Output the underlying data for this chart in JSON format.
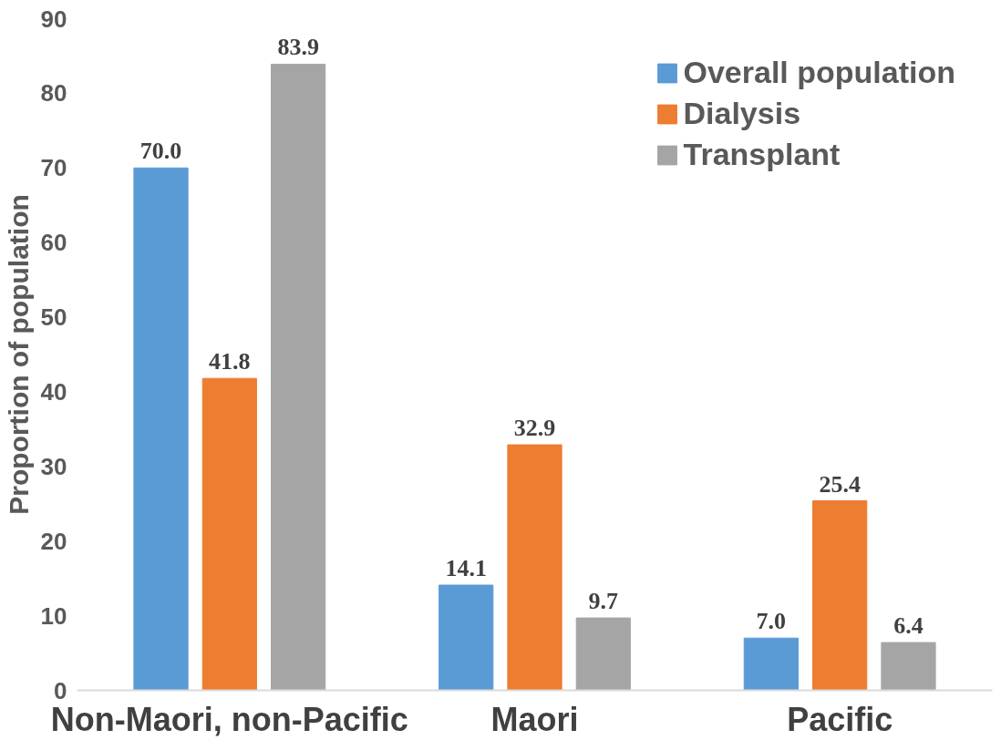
{
  "chart_data": {
    "type": "bar",
    "ylabel": "Proportion of population",
    "categories": [
      "Non-Maori, non-Pacific",
      "Maori",
      "Pacific"
    ],
    "series": [
      {
        "name": "Overall population",
        "color": "#5b9bd5",
        "values": [
          70.0,
          14.1,
          7.0
        ],
        "value_labels": [
          "70.0",
          "14.1",
          "7.0"
        ]
      },
      {
        "name": "Dialysis",
        "color": "#ed7d31",
        "values": [
          41.8,
          32.9,
          25.4
        ],
        "value_labels": [
          "41.8",
          "32.9",
          "25.4"
        ]
      },
      {
        "name": "Transplant",
        "color": "#a5a5a5",
        "values": [
          83.9,
          9.7,
          6.4
        ],
        "value_labels": [
          "83.9",
          "9.7",
          "6.4"
        ]
      }
    ],
    "ylim": [
      0,
      90
    ],
    "yticks": [
      0,
      10,
      20,
      30,
      40,
      50,
      60,
      70,
      80,
      90
    ],
    "grid": false,
    "legend": "top right"
  }
}
